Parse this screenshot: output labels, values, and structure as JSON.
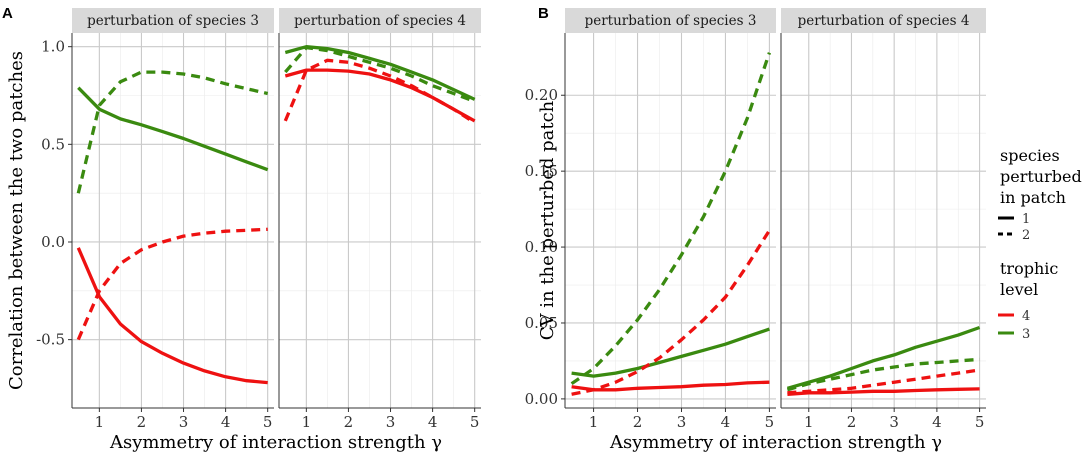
{
  "figure": {
    "panel_letters": [
      "A",
      "B"
    ],
    "legend": {
      "linetype_title": [
        "species",
        "perturbed",
        "in patch"
      ],
      "linetype_labels": [
        "1",
        "2"
      ],
      "color_title": [
        "trophic",
        "level"
      ],
      "color_labels": [
        "4",
        "3"
      ],
      "colors": {
        "4": "#ee1111",
        "3": "#3a8a10"
      }
    }
  },
  "chart_data": [
    {
      "type": "line",
      "panel": "A",
      "facets": [
        "perturbation of species 3",
        "perturbation of species 4"
      ],
      "xlabel": "Asymmetry of interaction strength γ",
      "ylabel": "Correlation between the two patches",
      "xlim": [
        0.35,
        5.15
      ],
      "ylim": [
        -0.85,
        1.07
      ],
      "xticks": [
        1,
        2,
        3,
        4,
        5
      ],
      "yticks": [
        -0.5,
        0.0,
        0.5,
        1.0
      ],
      "ytick_labels": [
        "-0.5",
        "0.0",
        "0.5",
        "1.0"
      ],
      "x": [
        0.5,
        1,
        1.5,
        2,
        2.5,
        3,
        3.5,
        4,
        4.5,
        5
      ],
      "series": [
        {
          "facet": 0,
          "trophic_level": "3",
          "species_perturbed": "1",
          "values": [
            0.79,
            0.68,
            0.63,
            0.6,
            0.565,
            0.53,
            0.49,
            0.45,
            0.41,
            0.37
          ]
        },
        {
          "facet": 0,
          "trophic_level": "3",
          "species_perturbed": "2",
          "values": [
            0.25,
            0.7,
            0.82,
            0.87,
            0.87,
            0.86,
            0.84,
            0.81,
            0.785,
            0.76
          ]
        },
        {
          "facet": 0,
          "trophic_level": "4",
          "species_perturbed": "1",
          "values": [
            -0.03,
            -0.28,
            -0.42,
            -0.51,
            -0.57,
            -0.62,
            -0.66,
            -0.69,
            -0.71,
            -0.72
          ]
        },
        {
          "facet": 0,
          "trophic_level": "4",
          "species_perturbed": "2",
          "values": [
            -0.5,
            -0.25,
            -0.11,
            -0.04,
            0.0,
            0.03,
            0.045,
            0.055,
            0.06,
            0.065
          ]
        },
        {
          "facet": 1,
          "trophic_level": "3",
          "species_perturbed": "1",
          "values": [
            0.97,
            1.0,
            0.99,
            0.97,
            0.94,
            0.91,
            0.87,
            0.83,
            0.78,
            0.73
          ]
        },
        {
          "facet": 1,
          "trophic_level": "3",
          "species_perturbed": "2",
          "values": [
            0.87,
            0.995,
            0.98,
            0.95,
            0.92,
            0.89,
            0.85,
            0.8,
            0.76,
            0.72
          ]
        },
        {
          "facet": 1,
          "trophic_level": "4",
          "species_perturbed": "1",
          "values": [
            0.85,
            0.88,
            0.88,
            0.875,
            0.86,
            0.83,
            0.79,
            0.74,
            0.68,
            0.62
          ]
        },
        {
          "facet": 1,
          "trophic_level": "4",
          "species_perturbed": "2",
          "values": [
            0.62,
            0.88,
            0.93,
            0.92,
            0.89,
            0.85,
            0.8,
            0.74,
            0.68,
            0.61
          ]
        }
      ]
    },
    {
      "type": "line",
      "panel": "B",
      "facets": [
        "perturbation of species 3",
        "perturbation of species 4"
      ],
      "xlabel": "Asymmetry of interaction strength γ",
      "ylabel": "CV in the perturbed patch",
      "xlim": [
        0.35,
        5.15
      ],
      "ylim": [
        -0.006,
        0.241
      ],
      "xticks": [
        1,
        2,
        3,
        4,
        5
      ],
      "yticks": [
        0.0,
        0.05,
        0.1,
        0.15,
        0.2
      ],
      "ytick_labels": [
        "0.00",
        "0.05",
        "0.10",
        "0.15",
        "0.20"
      ],
      "x": [
        0.5,
        1,
        1.5,
        2,
        2.5,
        3,
        3.5,
        4,
        4.5,
        5
      ],
      "series": [
        {
          "facet": 0,
          "trophic_level": "3",
          "species_perturbed": "1",
          "values": [
            0.017,
            0.015,
            0.017,
            0.02,
            0.024,
            0.028,
            0.032,
            0.036,
            0.041,
            0.046
          ]
        },
        {
          "facet": 0,
          "trophic_level": "3",
          "species_perturbed": "2",
          "values": [
            0.01,
            0.02,
            0.035,
            0.052,
            0.072,
            0.095,
            0.12,
            0.15,
            0.185,
            0.228
          ]
        },
        {
          "facet": 0,
          "trophic_level": "4",
          "species_perturbed": "1",
          "values": [
            0.008,
            0.006,
            0.006,
            0.007,
            0.0075,
            0.008,
            0.009,
            0.0095,
            0.0105,
            0.011
          ]
        },
        {
          "facet": 0,
          "trophic_level": "4",
          "species_perturbed": "2",
          "values": [
            0.003,
            0.006,
            0.011,
            0.018,
            0.027,
            0.039,
            0.052,
            0.067,
            0.088,
            0.111
          ]
        },
        {
          "facet": 1,
          "trophic_level": "3",
          "species_perturbed": "1",
          "values": [
            0.007,
            0.011,
            0.015,
            0.02,
            0.025,
            0.029,
            0.034,
            0.038,
            0.042,
            0.047
          ]
        },
        {
          "facet": 1,
          "trophic_level": "3",
          "species_perturbed": "2",
          "values": [
            0.006,
            0.01,
            0.013,
            0.016,
            0.019,
            0.021,
            0.023,
            0.024,
            0.025,
            0.026
          ]
        },
        {
          "facet": 1,
          "trophic_level": "4",
          "species_perturbed": "1",
          "values": [
            0.003,
            0.004,
            0.004,
            0.0045,
            0.005,
            0.005,
            0.0055,
            0.006,
            0.0063,
            0.0066
          ]
        },
        {
          "facet": 1,
          "trophic_level": "4",
          "species_perturbed": "2",
          "values": [
            0.004,
            0.005,
            0.006,
            0.007,
            0.009,
            0.011,
            0.013,
            0.015,
            0.017,
            0.019
          ]
        }
      ]
    }
  ]
}
